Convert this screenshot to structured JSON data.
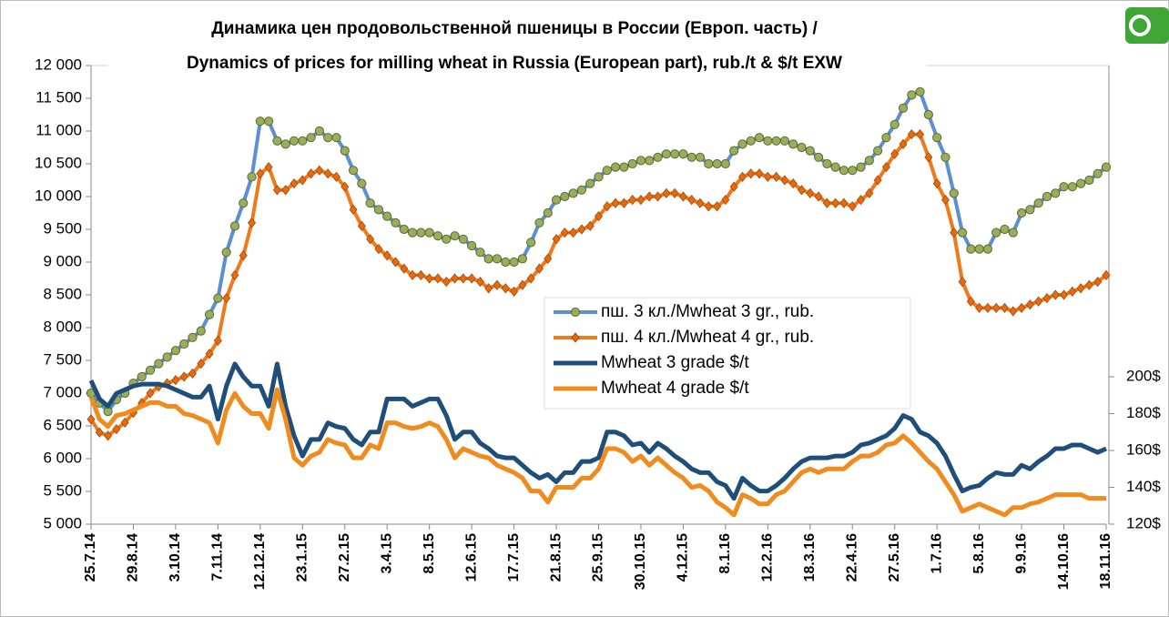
{
  "chart_data": {
    "type": "line",
    "title": [
      "Динамика цен продовольственной пшеницы в России (Европ. часть) /",
      "Dynamics of prices for milling wheat in Russia (European part), rub./t & $/t EXW"
    ],
    "categories": [
      "25.7.14",
      null,
      null,
      null,
      null,
      "29.8.14",
      null,
      null,
      null,
      null,
      "3.10.14",
      null,
      null,
      null,
      null,
      "7.11.14",
      null,
      null,
      null,
      null,
      "12.12.14",
      null,
      null,
      null,
      null,
      "23.1.15",
      null,
      null,
      null,
      null,
      "27.2.15",
      null,
      null,
      null,
      null,
      "3.4.15",
      null,
      null,
      null,
      null,
      "8.5.15",
      null,
      null,
      null,
      null,
      "12.6.15",
      null,
      null,
      null,
      null,
      "17.7.15",
      null,
      null,
      null,
      null,
      "21.8.15",
      null,
      null,
      null,
      null,
      "25.9.15",
      null,
      null,
      null,
      null,
      "30.10.15",
      null,
      null,
      null,
      null,
      "4.12.15",
      null,
      null,
      null,
      null,
      "8.1.16",
      null,
      null,
      null,
      null,
      "12.2.16",
      null,
      null,
      null,
      null,
      "18.3.16",
      null,
      null,
      null,
      null,
      "22.4.16",
      null,
      null,
      null,
      null,
      "27.5.16",
      null,
      null,
      null,
      null,
      "1.7.16",
      null,
      null,
      null,
      null,
      "5.8.16",
      null,
      null,
      null,
      null,
      "9.9.16",
      null,
      null,
      null,
      null,
      "14.10.16",
      null,
      null,
      null,
      null,
      "18.11.16"
    ],
    "ylim": [
      5000,
      12000
    ],
    "yticks": [
      {
        "value": 5000,
        "label": "5 000"
      },
      {
        "value": 5500,
        "label": "5 500"
      },
      {
        "value": 6000,
        "label": "6 000"
      },
      {
        "value": 6500,
        "label": "6 500"
      },
      {
        "value": 7000,
        "label": "7 000"
      },
      {
        "value": 7500,
        "label": "7 500"
      },
      {
        "value": 8000,
        "label": "8 000"
      },
      {
        "value": 8500,
        "label": "8 500"
      },
      {
        "value": 9000,
        "label": "9 000"
      },
      {
        "value": 9500,
        "label": "9 500"
      },
      {
        "value": 10000,
        "label": "10 000"
      },
      {
        "value": 10500,
        "label": "10 500"
      },
      {
        "value": 11000,
        "label": "11 000"
      },
      {
        "value": 11500,
        "label": "11 500"
      },
      {
        "value": 12000,
        "label": "12 000"
      }
    ],
    "y2lim": [
      120,
      369
    ],
    "y2ticks": [
      {
        "value": 120,
        "label": "120$"
      },
      {
        "value": 140,
        "label": "140$"
      },
      {
        "value": 160,
        "label": "160$"
      },
      {
        "value": 180,
        "label": "180$"
      },
      {
        "value": 200,
        "label": "200$"
      }
    ],
    "grid": false,
    "series": [
      {
        "name": "пш. 3 кл./Mwheat 3 gr., rub.",
        "color": "#5b8fd3",
        "marker": "circle",
        "marker_color": "#9aad5a",
        "values": [
          7000,
          6850,
          6720,
          6900,
          7000,
          7150,
          7250,
          7350,
          7450,
          7550,
          7650,
          7750,
          7850,
          7950,
          8200,
          8450,
          9150,
          9550,
          9900,
          10300,
          11150,
          11150,
          10850,
          10800,
          10850,
          10850,
          10900,
          11000,
          10900,
          10900,
          10700,
          10400,
          10200,
          9900,
          9800,
          9700,
          9600,
          9500,
          9450,
          9450,
          9450,
          9400,
          9350,
          9400,
          9350,
          9250,
          9150,
          9050,
          9050,
          9000,
          9000,
          9050,
          9300,
          9600,
          9750,
          9950,
          10000,
          10050,
          10100,
          10200,
          10300,
          10400,
          10450,
          10450,
          10500,
          10550,
          10550,
          10600,
          10650,
          10650,
          10650,
          10600,
          10600,
          10500,
          10500,
          10500,
          10700,
          10800,
          10850,
          10900,
          10850,
          10850,
          10850,
          10800,
          10750,
          10700,
          10600,
          10500,
          10450,
          10400,
          10400,
          10450,
          10550,
          10700,
          10900,
          11100,
          11350,
          11550,
          11600,
          11250,
          10900,
          10600,
          10050,
          9450,
          9200,
          9200,
          9200,
          9450,
          9500,
          9450,
          9750,
          9800,
          9900,
          10000,
          10050,
          10150,
          10150,
          10200,
          10250,
          10350,
          10450
        ]
      },
      {
        "name": "пш. 4 кл./Mwheat 4 gr., rub.",
        "color": "#f07a1a",
        "marker": "diamond",
        "marker_color": "#e86a10",
        "values": [
          6600,
          6400,
          6350,
          6450,
          6550,
          6700,
          6850,
          7000,
          7100,
          7150,
          7200,
          7250,
          7300,
          7450,
          7600,
          7800,
          8450,
          8800,
          9100,
          9600,
          10350,
          10450,
          10100,
          10100,
          10200,
          10250,
          10350,
          10400,
          10350,
          10300,
          10150,
          9800,
          9550,
          9350,
          9200,
          9100,
          9000,
          8900,
          8800,
          8800,
          8750,
          8750,
          8700,
          8750,
          8750,
          8750,
          8700,
          8600,
          8650,
          8600,
          8550,
          8650,
          8750,
          8900,
          9050,
          9350,
          9450,
          9450,
          9500,
          9550,
          9700,
          9850,
          9900,
          9900,
          9950,
          9950,
          10000,
          10000,
          10050,
          10050,
          10000,
          9950,
          9900,
          9850,
          9850,
          9950,
          10150,
          10300,
          10350,
          10350,
          10300,
          10300,
          10250,
          10200,
          10100,
          10050,
          10000,
          9900,
          9900,
          9900,
          9850,
          9950,
          10050,
          10250,
          10450,
          10650,
          10800,
          10950,
          10950,
          10600,
          10200,
          9950,
          9450,
          8700,
          8400,
          8300,
          8300,
          8300,
          8300,
          8250,
          8300,
          8350,
          8400,
          8450,
          8500,
          8500,
          8550,
          8600,
          8650,
          8700,
          8800
        ]
      },
      {
        "name": "Mwheat 3 grade $/t",
        "color": "#1f4e79",
        "axis": "y2",
        "values": [
          198,
          188,
          184,
          191,
          193,
          195,
          196,
          196,
          196,
          195,
          193,
          191,
          189,
          189,
          195,
          177,
          195,
          207,
          200,
          195,
          195,
          184,
          207,
          184,
          168,
          157,
          166,
          166,
          175,
          173,
          172,
          166,
          163,
          170,
          170,
          188,
          188,
          188,
          184,
          186,
          188,
          188,
          179,
          166,
          170,
          170,
          164,
          161,
          157,
          156,
          156,
          152,
          148,
          145,
          147,
          143,
          148,
          148,
          154,
          154,
          156,
          170,
          170,
          168,
          163,
          164,
          159,
          164,
          161,
          157,
          154,
          150,
          148,
          148,
          143,
          141,
          134,
          145,
          141,
          138,
          138,
          141,
          145,
          150,
          154,
          156,
          156,
          156,
          157,
          157,
          159,
          163,
          164,
          166,
          168,
          172,
          179,
          177,
          170,
          168,
          164,
          157,
          147,
          138,
          140,
          141,
          145,
          148,
          147,
          147,
          152,
          150,
          154,
          157,
          161,
          161,
          163,
          163,
          161,
          159,
          161
        ]
      },
      {
        "name": "Mwheat 4 grade $/t",
        "color": "#f08c1e",
        "axis": "y2",
        "values": [
          189,
          177,
          173,
          179,
          180,
          182,
          184,
          186,
          186,
          184,
          184,
          180,
          179,
          177,
          175,
          164,
          182,
          191,
          184,
          180,
          180,
          172,
          193,
          177,
          156,
          152,
          157,
          159,
          166,
          164,
          163,
          156,
          156,
          163,
          161,
          175,
          175,
          173,
          172,
          173,
          175,
          173,
          166,
          156,
          161,
          159,
          157,
          156,
          152,
          150,
          148,
          145,
          138,
          138,
          132,
          140,
          140,
          140,
          145,
          145,
          150,
          161,
          161,
          159,
          154,
          157,
          152,
          156,
          152,
          148,
          145,
          140,
          141,
          138,
          132,
          129,
          125,
          136,
          134,
          131,
          131,
          136,
          138,
          143,
          148,
          150,
          148,
          150,
          150,
          150,
          154,
          157,
          157,
          159,
          163,
          164,
          168,
          164,
          159,
          154,
          150,
          143,
          136,
          127,
          129,
          131,
          129,
          127,
          125,
          129,
          129,
          131,
          132,
          134,
          136,
          136,
          136,
          136,
          134,
          134,
          134
        ]
      }
    ]
  }
}
